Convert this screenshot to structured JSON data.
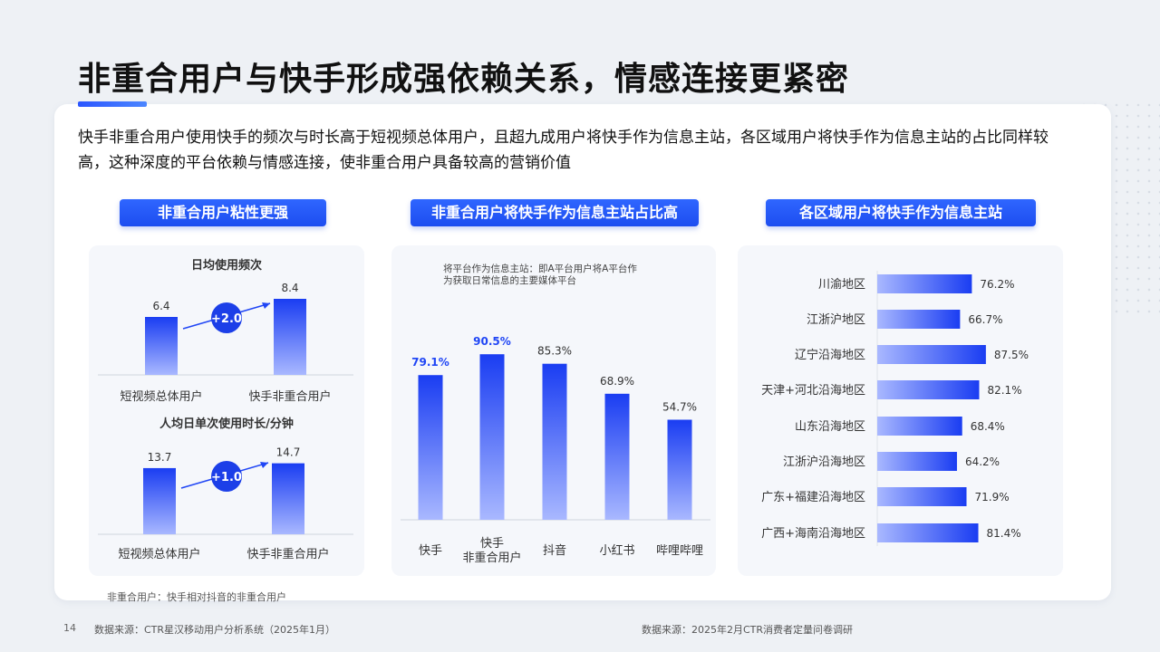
{
  "title": "非重合用户与快手形成强依赖关系，情感连接更紧密",
  "summary": "快手非重合用户使用快手的频次与时长高于短视频总体用户，且超九成用户将快手作为信息主站，各区域用户将快手作为信息主站的占比同样较高，这种深度的平台依赖与情感连接，使非重合用户具备较高的营销价值",
  "tabs": [
    "非重合用户粘性更强",
    "非重合用户将快手作为信息主站占比高",
    "各区域用户将快手作为信息主站"
  ],
  "colors": {
    "accent": "#2046f5",
    "bar_top": "#1a3df2",
    "bar_bottom": "#a9b8ff"
  },
  "chart_data": [
    {
      "type": "bar",
      "title": "日均使用频次",
      "categories": [
        "短视频总体用户",
        "快手非重合用户"
      ],
      "values": [
        6.4,
        8.4
      ],
      "value_labels": [
        "6.4",
        "8.4"
      ],
      "diff_label": "+2.0",
      "ylim": [
        0,
        10
      ]
    },
    {
      "type": "bar",
      "title": "人均日单次使用时长/分钟",
      "categories": [
        "短视频总体用户",
        "快手非重合用户"
      ],
      "values": [
        13.7,
        14.7
      ],
      "value_labels": [
        "13.7",
        "14.7"
      ],
      "diff_label": "+1.0",
      "ylim": [
        0,
        18
      ]
    },
    {
      "type": "bar",
      "note": "将平台作为信息主站：即A平台用户将A平台作为获取日常信息的主要媒体平台",
      "categories": [
        "快手",
        "快手\n非重合用户",
        "抖音",
        "小红书",
        "哔哩哔哩"
      ],
      "values": [
        79.1,
        90.5,
        85.3,
        68.9,
        54.7
      ],
      "value_labels": [
        "79.1%",
        "90.5%",
        "85.3%",
        "68.9%",
        "54.7%"
      ],
      "highlight": [
        true,
        true,
        false,
        false,
        false
      ],
      "ylim": [
        0,
        100
      ]
    },
    {
      "type": "bar",
      "orientation": "horizontal",
      "categories": [
        "川渝地区",
        "江浙沪地区",
        "辽宁沿海地区",
        "天津+河北沿海地区",
        "山东沿海地区",
        "江浙沪沿海地区",
        "广东+福建沿海地区",
        "广西+海南沿海地区"
      ],
      "values": [
        76.2,
        66.7,
        87.5,
        82.1,
        68.4,
        64.2,
        71.9,
        81.4
      ],
      "value_labels": [
        "76.2%",
        "66.7%",
        "87.5%",
        "82.1%",
        "68.4%",
        "64.2%",
        "71.9%",
        "81.4%"
      ],
      "xlim": [
        0,
        100
      ]
    }
  ],
  "footnote": "非重合用户：快手相对抖音的非重合用户",
  "page_number": "14",
  "source_left": "数据来源：CTR星汉移动用户分析系统（2025年1月）",
  "source_right": "数据来源：2025年2月CTR消费者定量问卷调研"
}
